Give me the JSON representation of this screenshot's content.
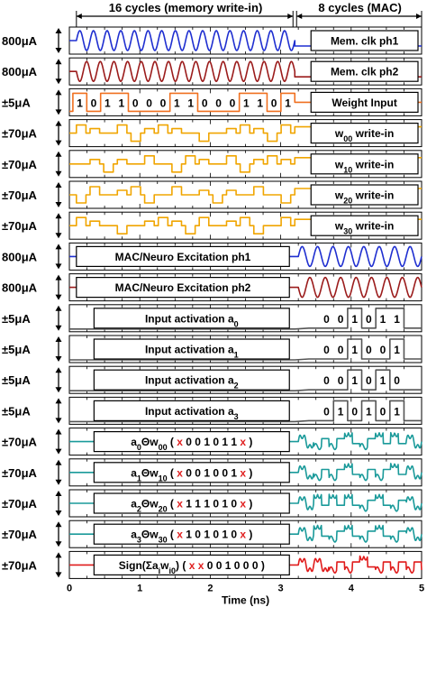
{
  "header": {
    "left": "16 cycles (memory write-in)",
    "right": "8 cycles (MAC)"
  },
  "chart_data": {
    "type": "line",
    "xlabel": "Time (ns)",
    "xlim": [
      0,
      5
    ],
    "xticks": [
      "0",
      "1",
      "2",
      "3",
      "4",
      "5"
    ],
    "phase_boundary_ns": 3.2,
    "colors": {
      "clock1": "#1f2fd0",
      "clock2": "#9b1c1c",
      "weight": "#f07020",
      "write": "#f0a500",
      "mac": "#1a9a9a",
      "sign": "#e01c1c",
      "act": "#555555",
      "x": "#e02020"
    },
    "rows": [
      {
        "amp": "800μA",
        "label": "Mem. clk ph1",
        "kind": "clk_mem",
        "color": "#1f2fd0"
      },
      {
        "amp": "800μA",
        "label": "Mem. clk ph2",
        "kind": "clk_mem",
        "color": "#9b1c1c"
      },
      {
        "amp": "±5μA",
        "label": "Weight Input",
        "kind": "weight",
        "color": "#f07020",
        "bits": [
          "1",
          "0",
          "1",
          "1",
          "0",
          "0",
          "0",
          "1",
          "1",
          "0",
          "0",
          "0",
          "1",
          "1",
          "0",
          "1"
        ]
      },
      {
        "amp": "±70μA",
        "label": "w00 write-in",
        "sub": "00",
        "kind": "write",
        "color": "#f0a500"
      },
      {
        "amp": "±70μA",
        "label": "w10 write-in",
        "sub": "10",
        "kind": "write",
        "color": "#f0a500"
      },
      {
        "amp": "±70μA",
        "label": "w20 write-in",
        "sub": "20",
        "kind": "write",
        "color": "#f0a500"
      },
      {
        "amp": "±70μA",
        "label": "w30 write-in",
        "sub": "30",
        "kind": "write",
        "color": "#f0a500"
      },
      {
        "amp": "800μA",
        "label": "MAC/Neuro Excitation ph1",
        "kind": "clk_mac",
        "color": "#1f2fd0"
      },
      {
        "amp": "800μA",
        "label": "MAC/Neuro Excitation ph2",
        "kind": "clk_mac",
        "color": "#9b1c1c"
      },
      {
        "amp": "±5μA",
        "label": "Input activation a0",
        "sub": "0",
        "kind": "act",
        "color": "#555555",
        "bits": [
          "0",
          "0",
          "1",
          "0",
          "1",
          "1"
        ]
      },
      {
        "amp": "±5μA",
        "label": "Input activation a1",
        "sub": "1",
        "kind": "act",
        "color": "#555555",
        "bits": [
          "0",
          "0",
          "1",
          "0",
          "0",
          "1"
        ]
      },
      {
        "amp": "±5μA",
        "label": "Input activation a2",
        "sub": "2",
        "kind": "act",
        "color": "#555555",
        "bits": [
          "0",
          "0",
          "1",
          "0",
          "1",
          "0"
        ]
      },
      {
        "amp": "±5μA",
        "label": "Input activation a3",
        "sub": "3",
        "kind": "act",
        "color": "#555555",
        "bits": [
          "0",
          "1",
          "0",
          "1",
          "0",
          "1"
        ]
      },
      {
        "amp": "±70μA",
        "label": "a0Θw00 ( x 0 0 1 0 1 1 x )",
        "pre": "a",
        "s1": "0",
        "mid": "Θw",
        "s2": "00",
        "seq": [
          "x",
          "0",
          "0",
          "1",
          "0",
          "1",
          "1",
          "x"
        ],
        "kind": "mac",
        "color": "#1a9a9a"
      },
      {
        "amp": "±70μA",
        "label": "a1Θw10 ( x 0 0 1 0 0 1 x )",
        "pre": "a",
        "s1": "1",
        "mid": "Θw",
        "s2": "10",
        "seq": [
          "x",
          "0",
          "0",
          "1",
          "0",
          "0",
          "1",
          "x"
        ],
        "kind": "mac",
        "color": "#1a9a9a"
      },
      {
        "amp": "±70μA",
        "label": "a2Θw20 ( x 1 1 1 0 1 0 x )",
        "pre": "a",
        "s1": "2",
        "mid": "Θw",
        "s2": "20",
        "seq": [
          "x",
          "1",
          "1",
          "1",
          "0",
          "1",
          "0",
          "x"
        ],
        "kind": "mac",
        "color": "#1a9a9a"
      },
      {
        "amp": "±70μA",
        "label": "a3Θw30 ( x 1 0 1 0 1 0 x )",
        "pre": "a",
        "s1": "3",
        "mid": "Θw",
        "s2": "30",
        "seq": [
          "x",
          "1",
          "0",
          "1",
          "0",
          "1",
          "0",
          "x"
        ],
        "kind": "mac",
        "color": "#1a9a9a"
      },
      {
        "amp": "±70μA",
        "label": "Sign(Σaiwi0) ( x x 0 0 1 0 0 0 )",
        "pre": "Sign(Σa",
        "s1": "i",
        "mid": "w",
        "s2": "i0",
        "post": ")",
        "seq": [
          "x",
          "x",
          "0",
          "0",
          "1",
          "0",
          "0",
          "0"
        ],
        "kind": "sign",
        "color": "#e01c1c"
      }
    ]
  }
}
